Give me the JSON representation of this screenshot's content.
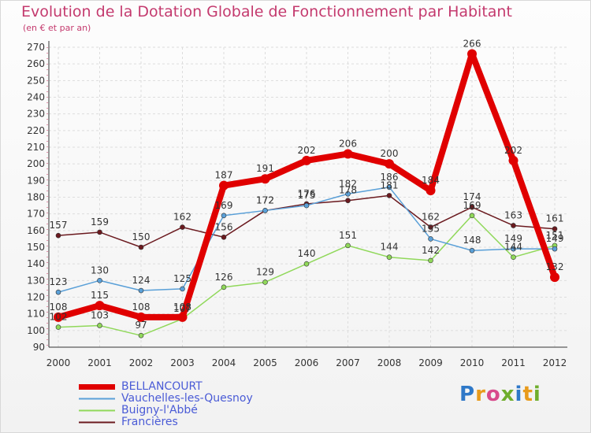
{
  "title": "Evolution de la Dotation Globale de Fonctionnement par Habitant",
  "subtitle": "(en € et par an)",
  "logo": {
    "text": "Proxiti",
    "letters": [
      "P",
      "r",
      "o",
      "x",
      "i",
      "t",
      "i"
    ],
    "colors": [
      "#2e78c8",
      "#e89b1c",
      "#d84a8c",
      "#6fae2c",
      "#2e78c8",
      "#e89b1c",
      "#6fae2c"
    ]
  },
  "chart_data": {
    "type": "line",
    "x": [
      "2000",
      "2001",
      "2002",
      "2003",
      "2004",
      "2005",
      "2006",
      "2007",
      "2008",
      "2009",
      "2010",
      "2011",
      "2012"
    ],
    "ylim": [
      90,
      270
    ],
    "yticks": [
      90,
      100,
      110,
      120,
      130,
      140,
      150,
      160,
      170,
      180,
      190,
      200,
      210,
      220,
      230,
      240,
      250,
      260,
      270
    ],
    "series": [
      {
        "name": "Francières",
        "color": "#6b1a1f",
        "values": [
          157,
          159,
          150,
          162,
          156,
          172,
          176,
          178,
          181,
          162,
          174,
          163,
          161
        ],
        "labels": [
          "157",
          "159",
          "150",
          "162",
          "156",
          "172",
          "176",
          "178",
          "181",
          "162",
          "174",
          "163",
          "161"
        ]
      },
      {
        "name": "Buigny-l'Abbé",
        "color": "#90d85a",
        "values": [
          102,
          103,
          97,
          107,
          126,
          129,
          140,
          151,
          144,
          142,
          169,
          144,
          151
        ],
        "labels": [
          "102",
          "103",
          "97",
          "107",
          "126",
          "129",
          "140",
          "151",
          "144",
          "142",
          "169",
          "144",
          "151"
        ]
      },
      {
        "name": "Vauchelles-les-Quesnoy",
        "color": "#5aa0d8",
        "values": [
          123,
          130,
          124,
          125,
          169,
          172,
          175,
          182,
          186,
          155,
          148,
          149,
          149
        ],
        "labels": [
          "123",
          "130",
          "124",
          "125",
          "169",
          "172",
          "175",
          "182",
          "186",
          "155",
          "148",
          "149",
          "149"
        ]
      },
      {
        "name": "BELLANCOURT",
        "color": "#e00000",
        "values": [
          108,
          115,
          108,
          108,
          187,
          191,
          202,
          206,
          200,
          184,
          266,
          202,
          132
        ],
        "labels": [
          "108",
          "115",
          "108",
          "108",
          "187",
          "191",
          "202",
          "206",
          "200",
          "184",
          "266",
          "202",
          "132"
        ]
      }
    ],
    "legend": [
      "BELLANCOURT",
      "Vauchelles-les-Quesnoy",
      "Buigny-l'Abbé",
      "Francières"
    ]
  }
}
